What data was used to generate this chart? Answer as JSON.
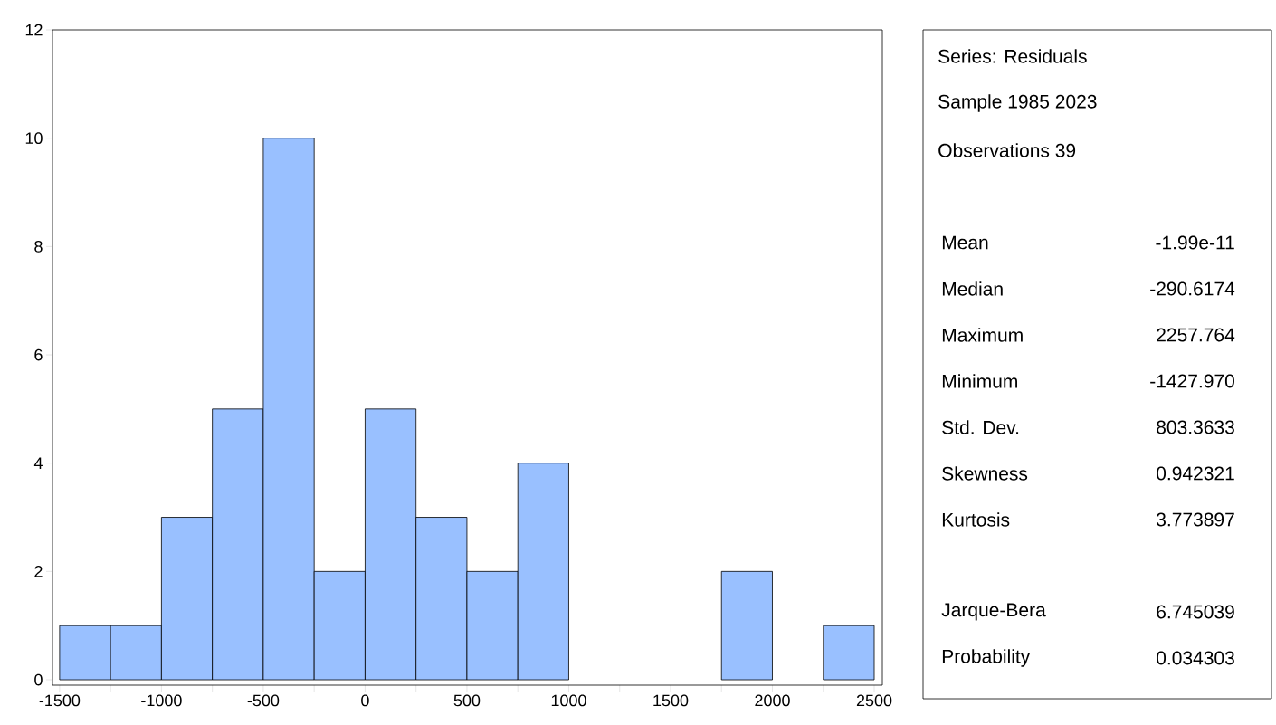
{
  "chart_data": [
    {
      "type": "histogram",
      "bins": [
        -1500,
        -1250,
        -1000,
        -750,
        -500,
        -250,
        0,
        250,
        500,
        750,
        1000,
        1250,
        1500,
        1750,
        2000,
        2250,
        2500
      ],
      "values": [
        1,
        1,
        3,
        5,
        10,
        2,
        5,
        3,
        2,
        4,
        0,
        0,
        0,
        2,
        0,
        1
      ],
      "color": "#99c0ff",
      "xlim": [
        -1535,
        2540
      ],
      "ylim": [
        -0.1,
        12
      ],
      "xticks": [
        -1500,
        {
          "value": -1250,
          "label": null
        },
        -1000,
        {
          "value": -750,
          "label": null
        },
        -500,
        {
          "value": -250,
          "label": null
        },
        0,
        {
          "value": 250,
          "label": null
        },
        500,
        {
          "value": 750,
          "label": null
        },
        1000,
        {
          "value": 1250,
          "label": null
        },
        1500,
        {
          "value": 1750,
          "label": null
        },
        2000,
        {
          "value": 2250,
          "label": null
        },
        2500
      ],
      "yticks": [
        0,
        2,
        4,
        6,
        8,
        10,
        12
      ]
    },
    {
      "type": "other",
      "annotations": [
        "Series: Residuals",
        "Sample 1985 2023",
        "Observations 39",
        "Mean",
        "-1.99e-11",
        "Median",
        "-290.6174",
        "Maximum",
        "2257.764",
        "Minimum",
        "-1427.970",
        "Std. Dev.",
        "803.3633",
        "Skewness",
        "0.942321",
        "Kurtosis",
        "3.773897",
        "Jarque-Bera",
        "6.745039",
        "Probability",
        "0.034303"
      ]
    }
  ]
}
